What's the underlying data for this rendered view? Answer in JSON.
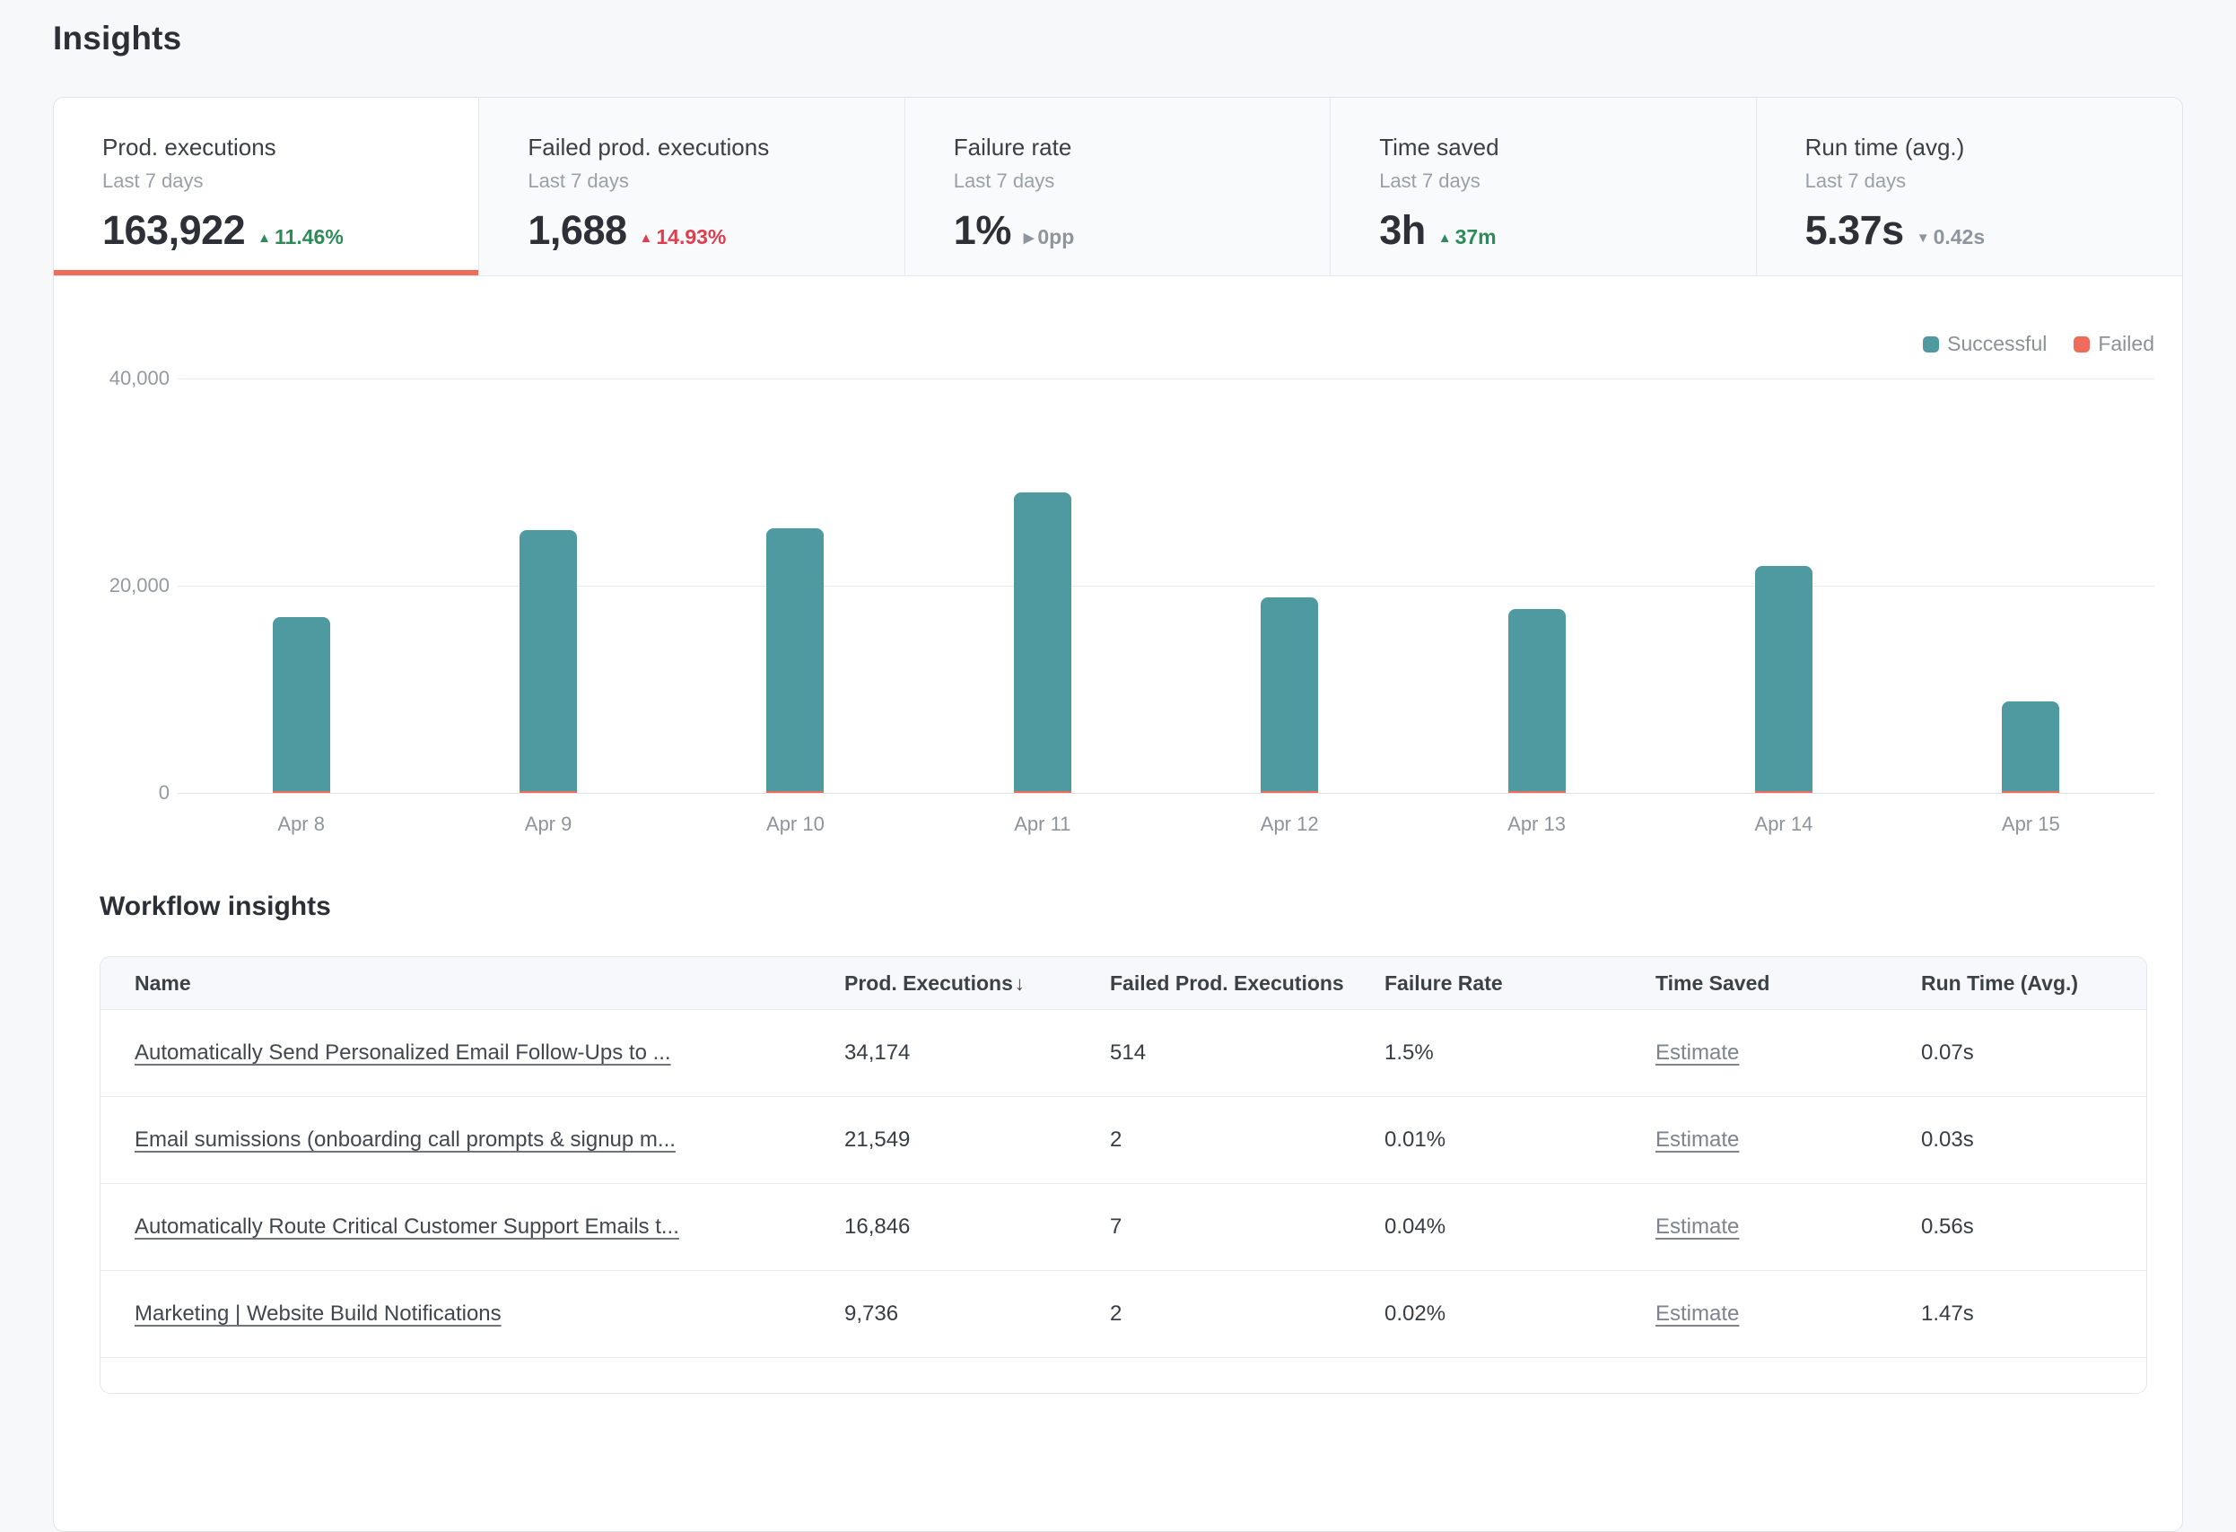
{
  "page": {
    "title": "Insights",
    "section_title": "Workflow insights"
  },
  "colors": {
    "accent_orange": "#ed6d5d",
    "successful_teal": "#4f99a0",
    "failed_coral": "#ef6c5c",
    "positive_green": "#2f8a5a",
    "negative_red": "#e03d4f",
    "neutral_grey": "#8f959d"
  },
  "summary_cards": [
    {
      "label": "Prod. executions",
      "sublabel": "Last 7 days",
      "value": "163,922",
      "arrow": "▲",
      "delta": "11.46%",
      "tone": "pos",
      "selected": true
    },
    {
      "label": "Failed prod. executions",
      "sublabel": "Last 7 days",
      "value": "1,688",
      "arrow": "▲",
      "delta": "14.93%",
      "tone": "neg",
      "selected": false
    },
    {
      "label": "Failure rate",
      "sublabel": "Last 7 days",
      "value": "1%",
      "arrow": "▶",
      "delta": "0pp",
      "tone": "neu",
      "selected": false
    },
    {
      "label": "Time saved",
      "sublabel": "Last 7 days",
      "value": "3h",
      "arrow": "▲",
      "delta": "37m",
      "tone": "pos",
      "selected": false
    },
    {
      "label": "Run time (avg.)",
      "sublabel": "Last 7 days",
      "value": "5.37s",
      "arrow": "▼",
      "delta": "0.42s",
      "tone": "neu",
      "selected": false
    }
  ],
  "chart_data": {
    "type": "bar",
    "stacked": true,
    "categories": [
      "Apr 8",
      "Apr 9",
      "Apr 10",
      "Apr 11",
      "Apr 12",
      "Apr 13",
      "Apr 14",
      "Apr 15"
    ],
    "series": [
      {
        "name": "Failed",
        "color": "#ef6c5c",
        "values": [
          210,
          211,
          210,
          211,
          211,
          211,
          212,
          212
        ]
      },
      {
        "name": "Successful",
        "color": "#4f99a0",
        "values": [
          16800,
          25200,
          25400,
          28800,
          18700,
          17600,
          21700,
          8700
        ]
      }
    ],
    "title": "",
    "xlabel": "",
    "ylabel": "",
    "ylim": [
      0,
      40000
    ],
    "yticks": [
      {
        "value": 0,
        "label": "0"
      },
      {
        "value": 20000,
        "label": "20,000"
      },
      {
        "value": 40000,
        "label": "40,000"
      }
    ],
    "grid": true,
    "legend_position": "top-right",
    "legend": [
      "Successful",
      "Failed"
    ]
  },
  "table": {
    "columns": [
      {
        "label": "Name"
      },
      {
        "label": "Prod. Executions",
        "sort_indicator": "↓"
      },
      {
        "label": "Failed Prod. Executions"
      },
      {
        "label": "Failure Rate"
      },
      {
        "label": "Time Saved"
      },
      {
        "label": "Run Time (Avg.)"
      }
    ],
    "rows": [
      {
        "name": "Automatically Send Personalized Email Follow-Ups to ...",
        "prod_executions": "34,174",
        "failed_prod_executions": "514",
        "failure_rate": "1.5%",
        "time_saved": "Estimate",
        "run_time": "0.07s"
      },
      {
        "name": "Email sumissions (onboarding call prompts & signup m...",
        "prod_executions": "21,549",
        "failed_prod_executions": "2",
        "failure_rate": "0.01%",
        "time_saved": "Estimate",
        "run_time": "0.03s"
      },
      {
        "name": "Automatically Route Critical Customer Support Emails t...",
        "prod_executions": "16,846",
        "failed_prod_executions": "7",
        "failure_rate": "0.04%",
        "time_saved": "Estimate",
        "run_time": "0.56s"
      },
      {
        "name": "Marketing | Website Build Notifications",
        "prod_executions": "9,736",
        "failed_prod_executions": "2",
        "failure_rate": "0.02%",
        "time_saved": "Estimate",
        "run_time": "1.47s"
      }
    ]
  }
}
